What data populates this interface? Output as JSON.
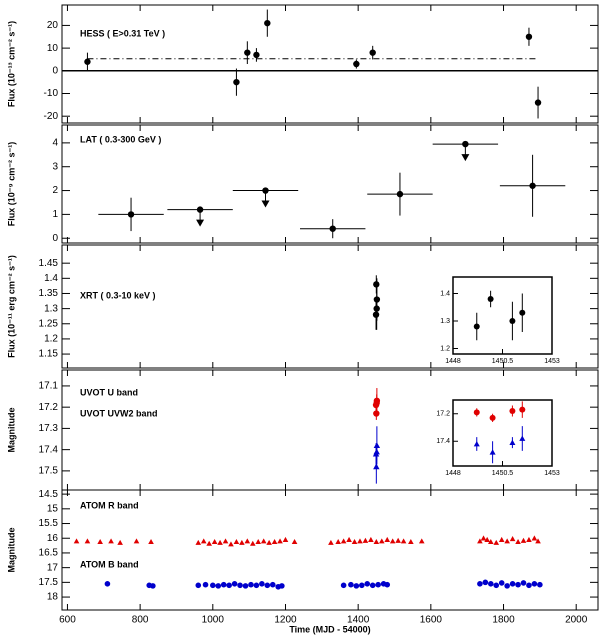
{
  "chart_data": [
    {
      "type": "errorbar",
      "ylabel": "Flux (10⁻¹³ cm⁻² s⁻¹)",
      "xlim": [
        585,
        2060
      ],
      "ylim": [
        -23,
        29
      ],
      "yticks": [
        -20,
        -10,
        0,
        10,
        20
      ],
      "hlines": [
        {
          "value": 0,
          "style": "solid"
        },
        {
          "value": 5.3,
          "style": "dashdot"
        }
      ],
      "series": [
        {
          "name": "HESS ( E>0.31 TeV )",
          "color": "#000000",
          "marker": "circle",
          "x": [
            655,
            1065,
            1095,
            1120,
            1150,
            1395,
            1440,
            1870,
            1895
          ],
          "values": [
            4,
            -5,
            8,
            7,
            21,
            3,
            8,
            15,
            -14
          ],
          "errors": [
            4,
            6,
            5,
            3,
            6,
            2,
            3,
            4,
            7
          ]
        }
      ]
    },
    {
      "type": "errorbar",
      "ylabel": "Flux (10⁻⁹ cm⁻² s⁻¹)",
      "xlim": [
        585,
        2060
      ],
      "ylim": [
        -0.2,
        4.75
      ],
      "yticks": [
        0,
        1,
        2,
        3,
        4
      ],
      "series": [
        {
          "name": "LAT ( 0.3-300 GeV )",
          "color": "#000000",
          "marker": "circle",
          "x": [
            775,
            965,
            1145,
            1330,
            1515,
            1695,
            1880
          ],
          "xerr": [
            90,
            90,
            90,
            90,
            90,
            90,
            90
          ],
          "values": [
            1.0,
            1.2,
            2.0,
            0.4,
            1.85,
            3.95,
            2.2
          ],
          "errors": [
            0.7,
            0,
            0,
            0.4,
            0.9,
            0,
            1.3
          ],
          "upper_limits": [
            false,
            true,
            true,
            false,
            false,
            true,
            false
          ]
        }
      ]
    },
    {
      "type": "errorbar",
      "ylabel": "Flux (10⁻¹¹ erg cm⁻² s⁻¹)",
      "xlim": [
        585,
        2060
      ],
      "ylim": [
        1.104,
        1.51
      ],
      "yticks": [
        1.15,
        1.2,
        1.25,
        1.3,
        1.35,
        1.4,
        1.45
      ],
      "inset": {
        "xlim": [
          1448,
          1453
        ],
        "xticks": [
          1448,
          1450.5,
          1453
        ],
        "ylim": [
          1.18,
          1.46
        ],
        "yticks": [
          1.2,
          1.3,
          1.4
        ]
      },
      "series": [
        {
          "name": "XRT ( 0.3-10 keV )",
          "color": "#000000",
          "marker": "circle",
          "x": [
            1449.2,
            1449.9,
            1451.0,
            1451.5
          ],
          "values": [
            1.28,
            1.38,
            1.3,
            1.33
          ],
          "errors": [
            0.05,
            0.03,
            0.07,
            0.07
          ]
        }
      ]
    },
    {
      "type": "errorbar",
      "ylabel": "Magnitude",
      "xlim": [
        585,
        2060
      ],
      "ylim": [
        17.59,
        17.025
      ],
      "yticks": [
        17.1,
        17.2,
        17.3,
        17.4,
        17.5
      ],
      "inset": {
        "xlim": [
          1448,
          1453
        ],
        "xticks": [
          1448,
          1450.5,
          1453
        ],
        "ylim": [
          17.58,
          17.1
        ],
        "yticks": [
          17.2,
          17.4
        ]
      },
      "series": [
        {
          "name": "UVOT U band",
          "color": "#e00000",
          "marker": "circle",
          "x": [
            1449.2,
            1450.0,
            1451.0,
            1451.5
          ],
          "values": [
            17.19,
            17.23,
            17.18,
            17.17
          ],
          "errors": [
            0.03,
            0.03,
            0.04,
            0.06
          ]
        },
        {
          "name": "UVOT UVW2 band",
          "color": "#0000cc",
          "marker": "triangle",
          "x": [
            1449.2,
            1450.0,
            1451.0,
            1451.5
          ],
          "values": [
            17.42,
            17.48,
            17.41,
            17.38
          ],
          "errors": [
            0.05,
            0.08,
            0.04,
            0.09
          ]
        }
      ]
    },
    {
      "type": "errorbar",
      "ylabel": "Magnitude",
      "xlabel": "Time (MJD - 54000)",
      "xlim": [
        585,
        2060
      ],
      "ylim": [
        18.44,
        14.36
      ],
      "yticks": [
        14.5,
        15,
        15.5,
        16,
        16.5,
        17,
        17.5,
        18
      ],
      "xticks": [
        600,
        800,
        1000,
        1200,
        1400,
        1600,
        1800,
        2000
      ],
      "series": [
        {
          "name": "ATOM R band",
          "color": "#e00000",
          "marker": "triangle",
          "x": [
            625,
            655,
            690,
            720,
            745,
            790,
            830,
            960,
            975,
            990,
            1005,
            1020,
            1035,
            1050,
            1065,
            1080,
            1095,
            1110,
            1125,
            1140,
            1155,
            1170,
            1185,
            1200,
            1225,
            1325,
            1345,
            1360,
            1375,
            1390,
            1405,
            1420,
            1435,
            1450,
            1465,
            1480,
            1495,
            1510,
            1525,
            1545,
            1575,
            1735,
            1745,
            1755,
            1765,
            1780,
            1795,
            1810,
            1825,
            1840,
            1855,
            1870,
            1885,
            1895
          ],
          "values": [
            16.1,
            16.1,
            16.12,
            16.1,
            16.15,
            16.1,
            16.12,
            16.15,
            16.1,
            16.18,
            16.12,
            16.15,
            16.1,
            16.2,
            16.12,
            16.15,
            16.1,
            16.18,
            16.12,
            16.1,
            16.15,
            16.12,
            16.1,
            16.05,
            16.12,
            16.15,
            16.12,
            16.1,
            16.05,
            16.12,
            16.1,
            16.08,
            16.05,
            16.12,
            16.1,
            16.05,
            16.1,
            16.08,
            16.1,
            16.12,
            16.1,
            16.1,
            16.0,
            16.05,
            16.12,
            16.15,
            16.05,
            16.1,
            16.02,
            16.12,
            16.08,
            16.05,
            16.0,
            16.1
          ]
        },
        {
          "name": "ATOM B band",
          "color": "#0000cc",
          "marker": "circle",
          "x": [
            710,
            825,
            835,
            960,
            980,
            1000,
            1015,
            1030,
            1045,
            1060,
            1075,
            1090,
            1105,
            1120,
            1135,
            1150,
            1165,
            1180,
            1190,
            1360,
            1380,
            1395,
            1410,
            1425,
            1440,
            1455,
            1470,
            1480,
            1735,
            1750,
            1765,
            1780,
            1795,
            1810,
            1825,
            1840,
            1855,
            1870,
            1885,
            1900
          ],
          "values": [
            17.55,
            17.6,
            17.62,
            17.6,
            17.58,
            17.6,
            17.62,
            17.58,
            17.6,
            17.55,
            17.6,
            17.62,
            17.58,
            17.6,
            17.55,
            17.6,
            17.58,
            17.65,
            17.62,
            17.6,
            17.58,
            17.62,
            17.6,
            17.55,
            17.6,
            17.58,
            17.55,
            17.58,
            17.55,
            17.5,
            17.55,
            17.6,
            17.52,
            17.62,
            17.55,
            17.58,
            17.52,
            17.6,
            17.55,
            17.58
          ]
        }
      ]
    }
  ]
}
